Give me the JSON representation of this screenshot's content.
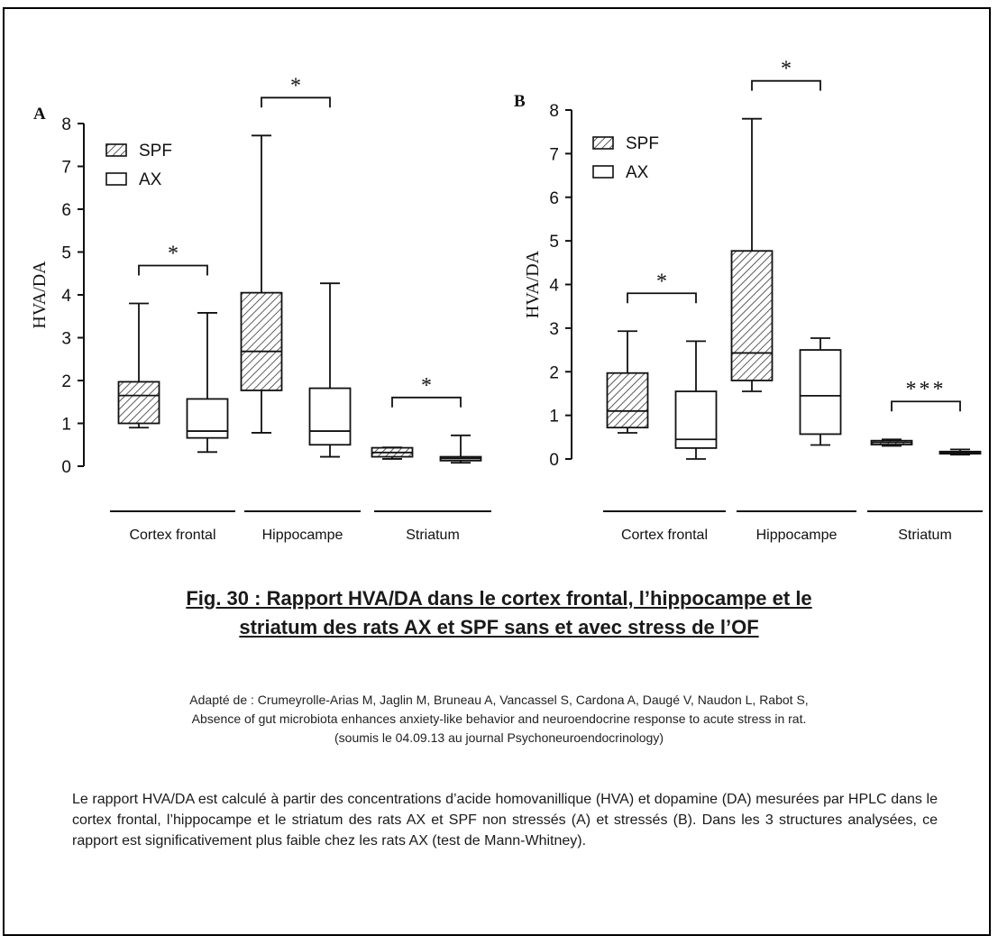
{
  "figure_title": {
    "line1": "Fig. 30 : Rapport HVA/DA dans le cortex frontal, l’hippocampe et le",
    "line2": "striatum des rats AX et SPF sans et avec stress de l’OF"
  },
  "credit": {
    "line1": "Adapté de : Crumeyrolle-Arias M, Jaglin M, Bruneau A, Vancassel S, Cardona A, Daugé V, Naudon L, Rabot S,",
    "line2": "Absence of gut microbiota enhances anxiety-like behavior and neuroendocrine response to acute stress in rat.",
    "line3": "(soumis le 04.09.13 au journal Psychoneuroendocrinology)"
  },
  "description": "Le rapport HVA/DA est calculé à partir des concentrations d’acide homovanillique (HVA) et dopamine (DA) mesurées par HPLC dans le cortex frontal, l’hippocampe et le striatum des rats AX et SPF non stressés (A) et stressés (B). Dans les 3 structures analysées, ce rapport est significativement plus faible chez les rats AX (test de Mann-Whitney).",
  "chart_data": [
    {
      "type": "box",
      "panel_label": "A",
      "ylabel": "HVA/DA",
      "ylim": [
        0,
        8
      ],
      "yticks": [
        0,
        1,
        2,
        3,
        4,
        5,
        6,
        7,
        8
      ],
      "categories": [
        "Cortex frontal",
        "Hippocampe",
        "Striatum"
      ],
      "legend": {
        "placement": "top-left",
        "entries": [
          "SPF",
          "AX"
        ]
      },
      "series": [
        {
          "name": "SPF",
          "fill": "hatched",
          "boxes": [
            {
              "min": 0.9,
              "q1": 1.0,
              "median": 1.65,
              "q3": 1.97,
              "max": 3.8
            },
            {
              "min": 0.78,
              "q1": 1.77,
              "median": 2.68,
              "q3": 4.05,
              "max": 7.72
            },
            {
              "min": 0.17,
              "q1": 0.22,
              "median": 0.32,
              "q3": 0.43,
              "max": 0.44
            }
          ]
        },
        {
          "name": "AX",
          "fill": "white",
          "boxes": [
            {
              "min": 0.33,
              "q1": 0.66,
              "median": 0.82,
              "q3": 1.57,
              "max": 3.58
            },
            {
              "min": 0.22,
              "q1": 0.5,
              "median": 0.82,
              "q3": 1.82,
              "max": 4.27
            },
            {
              "min": 0.08,
              "q1": 0.13,
              "median": 0.18,
              "q3": 0.22,
              "max": 0.72
            }
          ]
        }
      ],
      "significance": [
        "*",
        "*",
        "*"
      ]
    },
    {
      "type": "box",
      "panel_label": "B",
      "ylabel": "HVA/DA",
      "ylim": [
        0,
        8
      ],
      "yticks": [
        0,
        1,
        2,
        3,
        4,
        5,
        6,
        7,
        8
      ],
      "categories": [
        "Cortex frontal",
        "Hippocampe",
        "Striatum"
      ],
      "legend": {
        "placement": "top-left",
        "entries": [
          "SPF",
          "AX"
        ]
      },
      "series": [
        {
          "name": "SPF",
          "fill": "hatched",
          "boxes": [
            {
              "min": 0.6,
              "q1": 0.72,
              "median": 1.1,
              "q3": 1.97,
              "max": 2.93
            },
            {
              "min": 1.55,
              "q1": 1.8,
              "median": 2.43,
              "q3": 4.77,
              "max": 7.8
            },
            {
              "min": 0.3,
              "q1": 0.33,
              "median": 0.38,
              "q3": 0.42,
              "max": 0.45
            }
          ]
        },
        {
          "name": "AX",
          "fill": "white",
          "boxes": [
            {
              "min": 0.0,
              "q1": 0.25,
              "median": 0.45,
              "q3": 1.55,
              "max": 2.7
            },
            {
              "min": 0.32,
              "q1": 0.57,
              "median": 1.45,
              "q3": 2.5,
              "max": 2.77
            },
            {
              "min": 0.1,
              "q1": 0.12,
              "median": 0.15,
              "q3": 0.17,
              "max": 0.22
            }
          ]
        }
      ],
      "significance": [
        "*",
        "*",
        "***"
      ]
    }
  ]
}
